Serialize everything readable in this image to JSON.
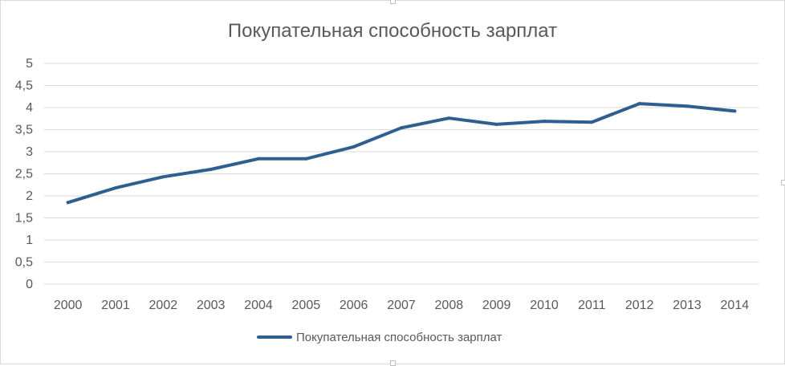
{
  "colors": {
    "series": "#2e5f8f",
    "grid": "#d9d9d9",
    "text": "#595959",
    "frame": "#d9d9d9"
  },
  "chart_data": {
    "type": "line",
    "title": "Покупательная способность зарплат",
    "xlabel": "",
    "ylabel": "",
    "categories": [
      "2000",
      "2001",
      "2002",
      "2003",
      "2004",
      "2005",
      "2006",
      "2007",
      "2008",
      "2009",
      "2010",
      "2011",
      "2012",
      "2013",
      "2014"
    ],
    "series": [
      {
        "name": "Покупательная способность зарплат",
        "values": [
          1.85,
          2.18,
          2.43,
          2.6,
          2.84,
          2.84,
          3.11,
          3.54,
          3.76,
          3.62,
          3.69,
          3.67,
          4.09,
          4.03,
          3.92
        ]
      }
    ],
    "ylim": [
      0,
      5
    ],
    "yticks": [
      "0",
      "0,5",
      "1",
      "1,5",
      "2",
      "2,5",
      "3",
      "3,5",
      "4",
      "4,5",
      "5"
    ],
    "grid": true,
    "legend_position": "bottom"
  }
}
